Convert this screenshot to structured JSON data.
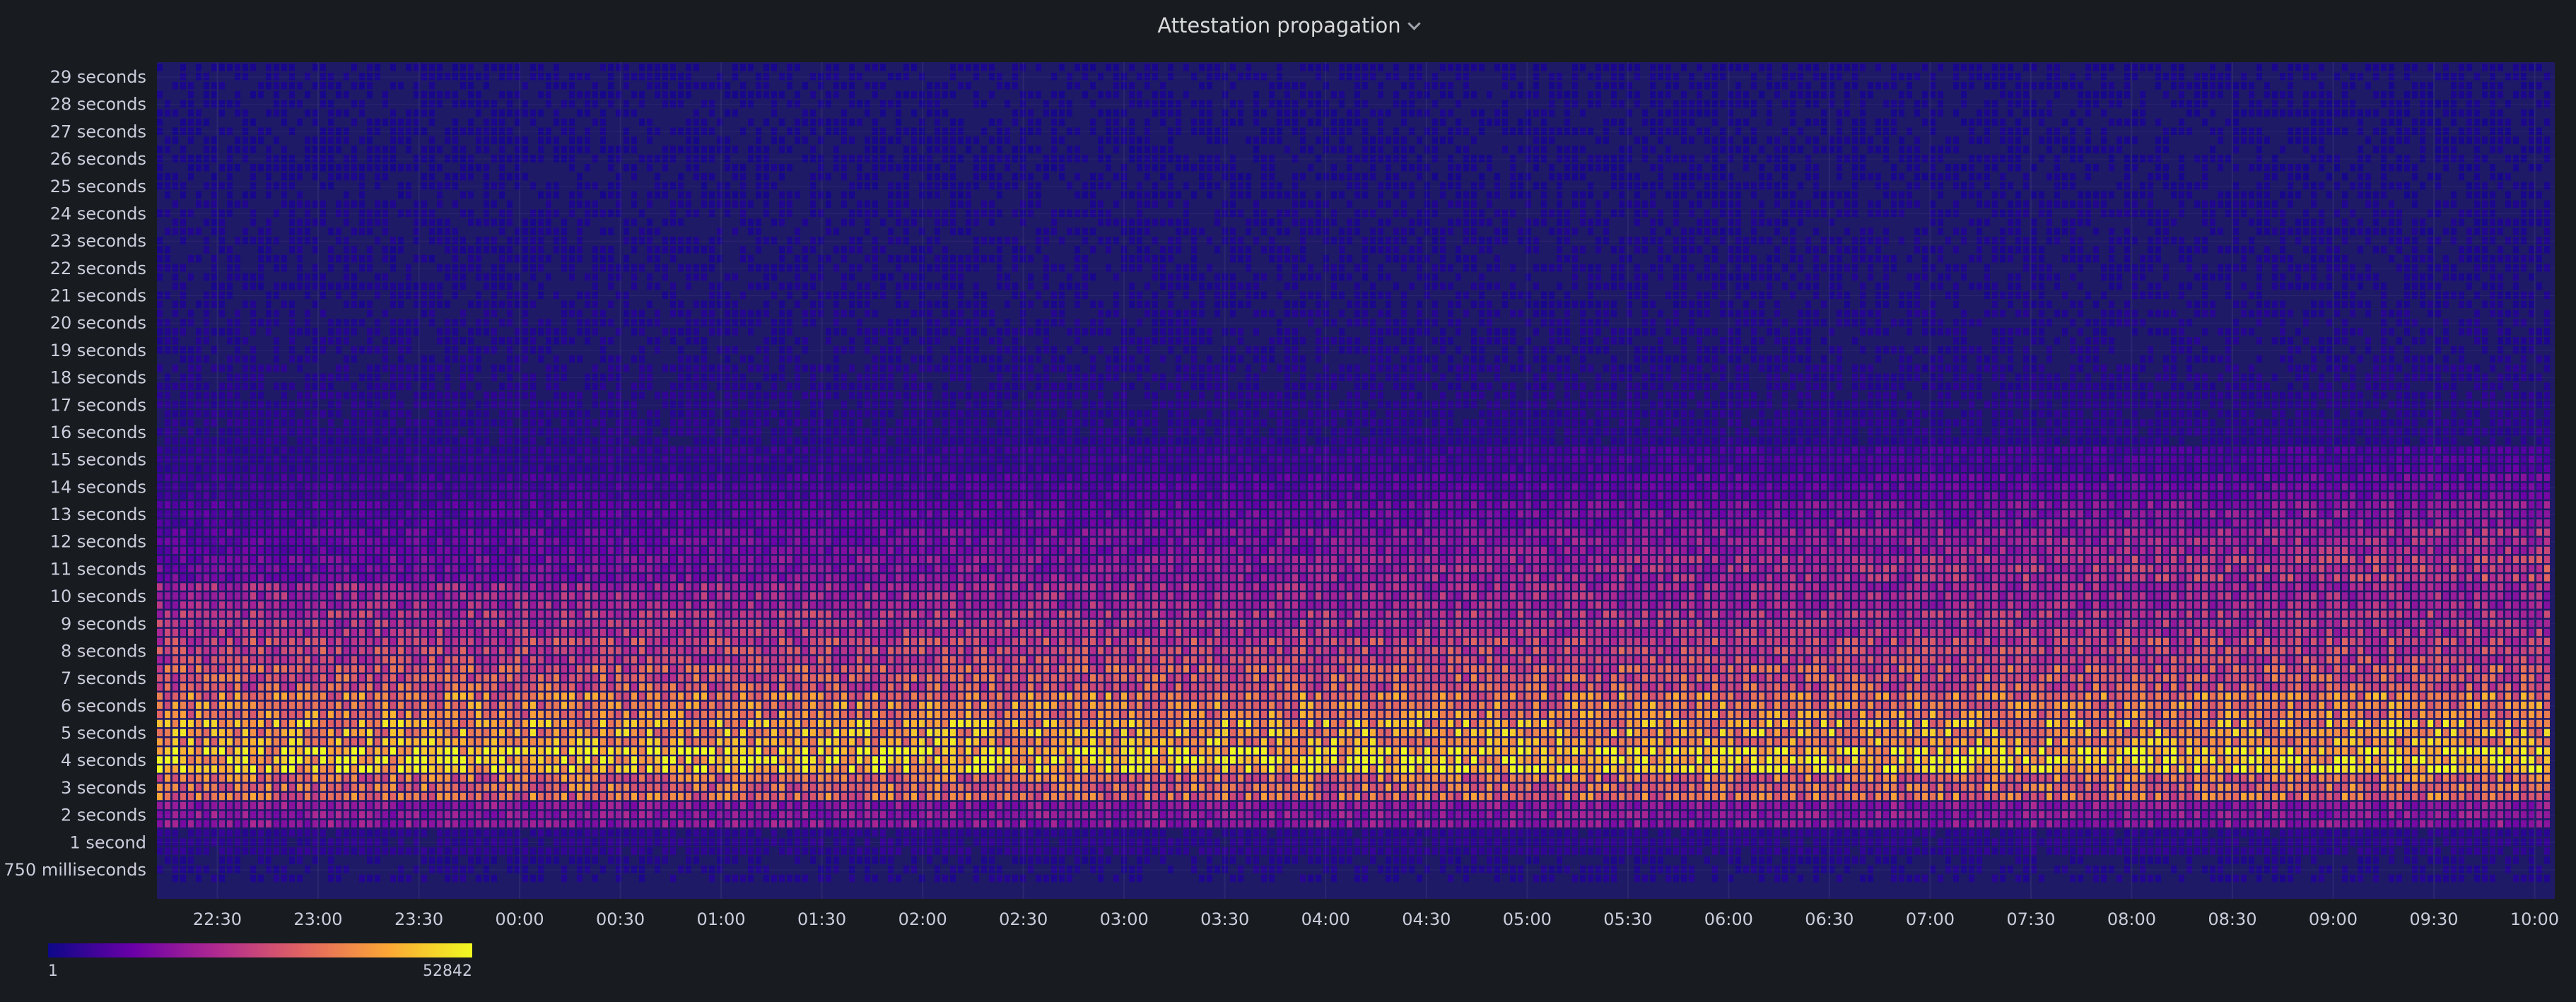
{
  "panel": {
    "title": "Attestation propagation"
  },
  "chart_data": {
    "type": "heatmap",
    "title": "Attestation propagation",
    "y_bucket_labels": [
      "750 milliseconds",
      "1 second",
      "2 seconds",
      "3 seconds",
      "4 seconds",
      "5 seconds",
      "6 seconds",
      "7 seconds",
      "8 seconds",
      "9 seconds",
      "10 seconds",
      "11 seconds",
      "12 seconds",
      "13 seconds",
      "14 seconds",
      "15 seconds",
      "16 seconds",
      "17 seconds",
      "18 seconds",
      "19 seconds",
      "20 seconds",
      "21 seconds",
      "22 seconds",
      "23 seconds",
      "24 seconds",
      "25 seconds",
      "26 seconds",
      "27 seconds",
      "28 seconds",
      "29 seconds"
    ],
    "x_tick_labels": [
      "22:30",
      "23:00",
      "23:30",
      "00:00",
      "00:30",
      "01:00",
      "01:30",
      "02:00",
      "02:30",
      "03:00",
      "03:30",
      "04:00",
      "04:30",
      "05:00",
      "05:30",
      "06:00",
      "06:30",
      "07:00",
      "07:30",
      "08:00",
      "08:30",
      "09:00",
      "09:30",
      "10:00"
    ],
    "x_range": [
      "22:12",
      "10:06"
    ],
    "color_scale": {
      "min": 1,
      "max": 52842,
      "min_label": "1",
      "max_label": "52842",
      "colors": [
        "#0d0887",
        "#6a00a8",
        "#b12a90",
        "#e16462",
        "#fca636",
        "#f0f921"
      ]
    },
    "approx_density_by_bucket": [
      0.05,
      0.08,
      0.35,
      0.7,
      1.0,
      0.85,
      0.75,
      0.62,
      0.55,
      0.48,
      0.42,
      0.36,
      0.3,
      0.24,
      0.18,
      0.12,
      0.08,
      0.07,
      0.06,
      0.05,
      0.05,
      0.04,
      0.04,
      0.04,
      0.04,
      0.03,
      0.03,
      0.03,
      0.03,
      0.03
    ],
    "legend_position": "bottom-left",
    "grid": true
  }
}
